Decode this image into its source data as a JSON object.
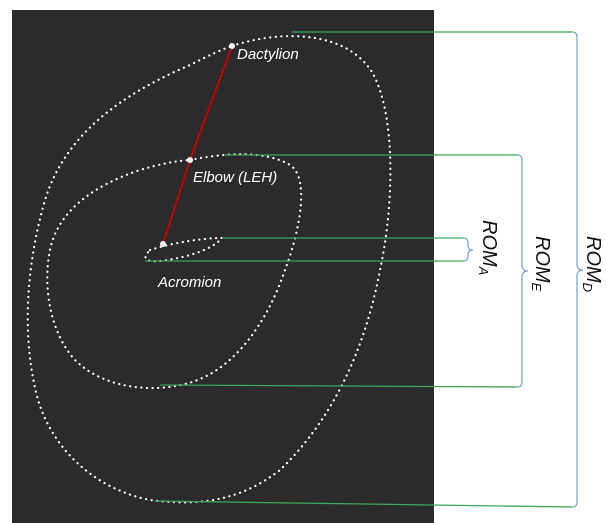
{
  "labels": {
    "dactylion": "Dactylion",
    "elbow": "Elbow (LEH)",
    "acromion": "Acromion"
  },
  "rom": {
    "a": {
      "main": "ROM",
      "sub": "A"
    },
    "e": {
      "main": "ROM",
      "sub": "E"
    },
    "d": {
      "main": "ROM",
      "sub": "D"
    }
  },
  "colors": {
    "panel": "#2b2b2b",
    "trajectory": "#ffffff",
    "segment": "#c00000",
    "connector": "#3aa657",
    "bracket": "#7fa6cf",
    "text": "#111111"
  }
}
